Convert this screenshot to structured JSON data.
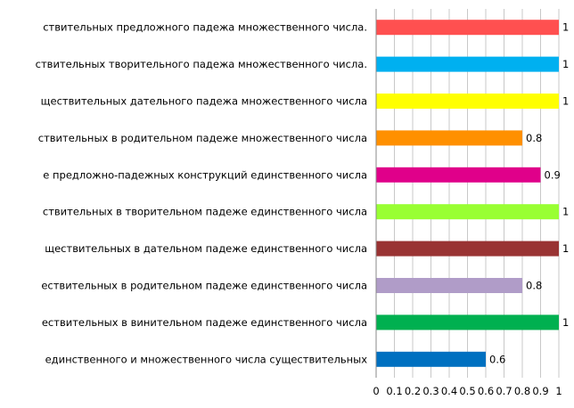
{
  "chart_data": {
    "type": "bar",
    "orientation": "horizontal",
    "categories": [
      "ствительных предложного падежа множественного числа.",
      "ствительных творительного падежа множественного числа.",
      "ществительных дательного падежа множественного числа",
      "ствительных в родительном падеже множественного числа",
      "е предложно-падежных конструкций единственного числа",
      "ствительных в творительном падеже единственного числа",
      "ществительных в дательном падеже единственного числа",
      "ествительных в родительном падеже единственного числа",
      "ествительных в винительном падеже единственного числа",
      "единственного и множественного числа существительных"
    ],
    "values": [
      1,
      1,
      1,
      0.8,
      0.9,
      1,
      1,
      0.8,
      1,
      0.6
    ],
    "value_labels": [
      "1",
      "1",
      "1",
      "0.8",
      "0.9",
      "1",
      "1",
      "0.8",
      "1",
      "0.6"
    ],
    "colors": [
      "#ff5050",
      "#00b0f0",
      "#ffff00",
      "#ff9000",
      "#e0008a",
      "#99ff33",
      "#993333",
      "#b09cc8",
      "#00b050",
      "#0070c0"
    ],
    "xlim": [
      0,
      1
    ],
    "x_ticks": [
      "0",
      "0.1",
      "0.2",
      "0.3",
      "0.4",
      "0.5",
      "0.6",
      "0.7",
      "0.8",
      "0.9",
      "1"
    ],
    "grid": "vertical",
    "title": "",
    "xlabel": "",
    "ylabel": ""
  }
}
